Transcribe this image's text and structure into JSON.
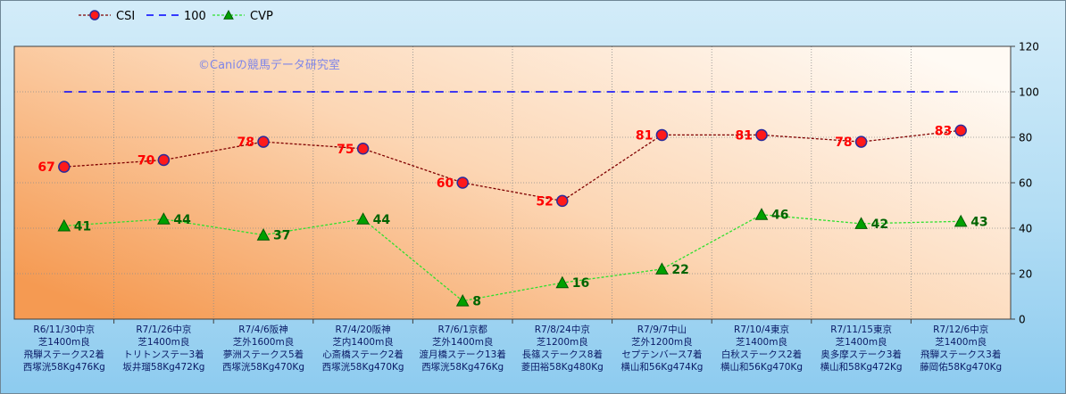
{
  "watermark": "©Caniの競馬データ研究室",
  "chart_data": {
    "type": "line",
    "categories": [
      [
        "R6/11/30中京",
        "芝1400m良",
        "飛騨ステークス2着",
        "西塚洸58Kg476Kg"
      ],
      [
        "R7/1/26中京",
        "芝1400m良",
        "トリトンステー3着",
        "坂井瑠58Kg472Kg"
      ],
      [
        "R7/4/6阪神",
        "芝外1600m良",
        "夢洲ステークス5着",
        "西塚洸58Kg470Kg"
      ],
      [
        "R7/4/20阪神",
        "芝内1400m良",
        "心斎橋ステーク2着",
        "西塚洸58Kg470Kg"
      ],
      [
        "R7/6/1京都",
        "芝外1400m良",
        "渡月橋ステーク13着",
        "西塚洸58Kg476Kg"
      ],
      [
        "R7/8/24中京",
        "芝1200m良",
        "長篠ステークス8着",
        "菱田裕58Kg480Kg"
      ],
      [
        "R7/9/7中山",
        "芝外1200m良",
        "セプテンバース7着",
        "横山和56Kg474Kg"
      ],
      [
        "R7/10/4東京",
        "芝1400m良",
        "白秋ステークス2着",
        "横山和56Kg470Kg"
      ],
      [
        "R7/11/15東京",
        "芝1400m良",
        "奥多摩ステーク3着",
        "横山和58Kg472Kg"
      ],
      [
        "R7/12/6中京",
        "芝1400m良",
        "飛騨ステークス3着",
        "藤岡佑58Kg470Kg"
      ]
    ],
    "series": [
      {
        "name": "CSI",
        "values": [
          67,
          70,
          78,
          75,
          60,
          52,
          81,
          81,
          78,
          83
        ],
        "line_color": "#800000",
        "marker": "circle",
        "marker_fill": "#ff1a1a",
        "marker_stroke": "#2b2b9a",
        "label_color": "#ff0000",
        "label_position": "left"
      },
      {
        "name": "100",
        "values": [
          100,
          100,
          100,
          100,
          100,
          100,
          100,
          100,
          100,
          100
        ],
        "line_color": "#0000ff",
        "marker": "none"
      },
      {
        "name": "CVP",
        "values": [
          41,
          44,
          37,
          44,
          8,
          16,
          22,
          46,
          42,
          43
        ],
        "line_color": "#2ee02e",
        "marker": "triangle",
        "marker_fill": "#00a000",
        "marker_stroke": "#005a00",
        "label_color": "#006400",
        "label_position": "right"
      }
    ],
    "ylim": [
      0,
      120
    ],
    "yticks": [
      0,
      20,
      40,
      60,
      80,
      100,
      120
    ],
    "y_axis_side": "right",
    "grid": true,
    "legend": "top-left"
  }
}
